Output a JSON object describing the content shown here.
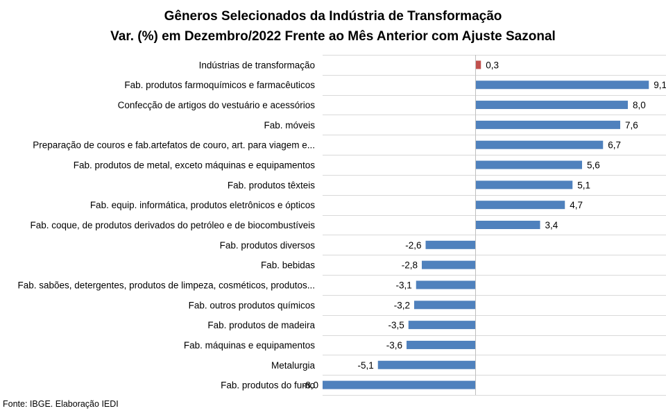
{
  "chart_data": {
    "type": "bar",
    "orientation": "horizontal",
    "title": "Gêneros Selecionados da Indústria de Transformação",
    "subtitle": "Var. (%) em Dezembro/2022 Frente ao Mês Anterior com Ajuste Sazonal",
    "categories": [
      "Indústrias de transformação",
      "Fab. produtos farmoquímicos e farmacêuticos",
      "Confecção de artigos do vestuário e acessórios",
      "Fab. móveis",
      "Preparação de couros e fab.artefatos de couro, art. para viagem e...",
      "Fab. produtos de metal, exceto máquinas e equipamentos",
      "Fab. produtos têxteis",
      "Fab. equip. informática, produtos eletrônicos e ópticos",
      "Fab. coque, de produtos derivados do petróleo e de biocombustíveis",
      "Fab. produtos diversos",
      "Fab. bebidas",
      "Fab. sabões, detergentes, produtos de limpeza, cosméticos, produtos...",
      "Fab. outros produtos químicos",
      "Fab. produtos de madeira",
      "Fab. máquinas e equipamentos",
      "Metalurgia",
      "Fab. produtos do fumo"
    ],
    "values": [
      0.3,
      9.1,
      8.0,
      7.6,
      6.7,
      5.6,
      5.1,
      4.7,
      3.4,
      -2.6,
      -2.8,
      -3.1,
      -3.2,
      -3.5,
      -3.6,
      -5.1,
      -8.0
    ],
    "value_labels": [
      "0,3",
      "9,1",
      "8,0",
      "7,6",
      "6,7",
      "5,6",
      "5,1",
      "4,7",
      "3,4",
      "-2,6",
      "-2,8",
      "-3,1",
      "-3,2",
      "-3,5",
      "-3,6",
      "-5,1",
      "-8,0"
    ],
    "highlight_index": 0,
    "colors": {
      "bar": "#4f81bd",
      "highlight": "#c0504d",
      "gridline": "#d9d9d9",
      "axis": "#bfbfbf"
    },
    "xlim": [
      -8.0,
      10.0
    ],
    "grid": true,
    "axis_labels_visible": false,
    "legend": "none"
  },
  "footer": {
    "source": "Fonte: IBGE. Elaboração IEDI"
  }
}
